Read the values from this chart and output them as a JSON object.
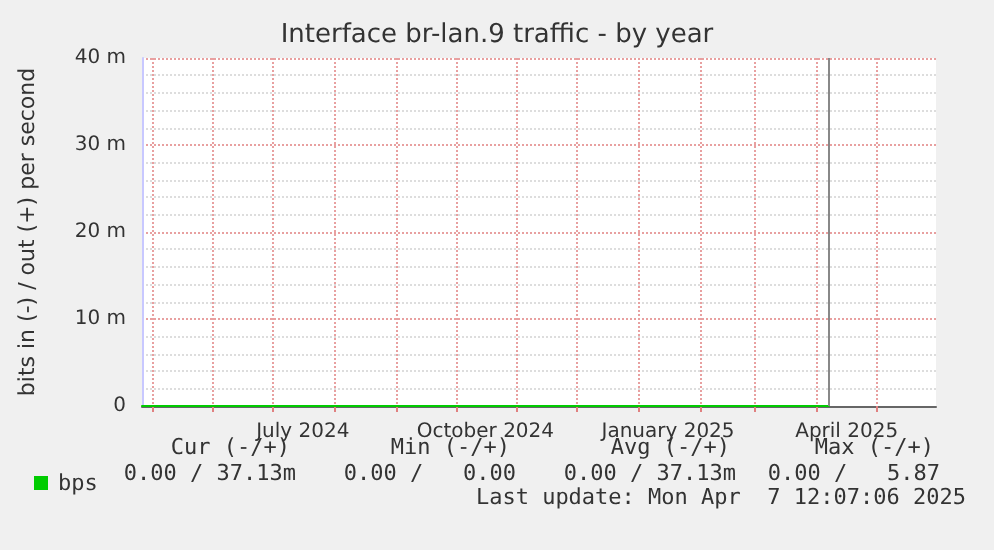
{
  "chart_data": {
    "type": "line",
    "title": "Interface br-lan.9 traffic - by year",
    "ylabel": "bits in (-) / out (+) per second",
    "xlim": [
      "2024-04-26",
      "2025-05-31"
    ],
    "xticks": [
      {
        "value": "2024-05-01",
        "label": null
      },
      {
        "value": "2024-06-01",
        "label": null
      },
      {
        "value": "2024-07-01",
        "label": null
      },
      {
        "value": "2024-07-16",
        "label": "July 2024"
      },
      {
        "value": "2024-08-01",
        "label": null
      },
      {
        "value": "2024-09-01",
        "label": null
      },
      {
        "value": "2024-10-01",
        "label": null
      },
      {
        "value": "2024-10-16",
        "label": "October 2024"
      },
      {
        "value": "2024-11-01",
        "label": null
      },
      {
        "value": "2024-12-01",
        "label": null
      },
      {
        "value": "2025-01-01",
        "label": null
      },
      {
        "value": "2025-01-16",
        "label": "January 2025"
      },
      {
        "value": "2025-02-01",
        "label": null
      },
      {
        "value": "2025-03-01",
        "label": null
      },
      {
        "value": "2025-04-01",
        "label": null
      },
      {
        "value": "2025-04-16",
        "label": "April 2025"
      },
      {
        "value": "2025-05-01",
        "label": null
      }
    ],
    "ylim": [
      0,
      40
    ],
    "yticks": [
      0,
      {
        "value": 10,
        "label": "10 m"
      },
      {
        "value": 20,
        "label": "20 m"
      },
      {
        "value": 30,
        "label": "30 m"
      },
      {
        "value": 40,
        "label": "40 m"
      }
    ],
    "grid": true,
    "legend": "bottom left",
    "marker": "none",
    "line_style": "solid",
    "series": [
      {
        "name": "bps",
        "color": "#00cc00",
        "x": [
          "2024-04-26",
          "2025-04-07"
        ],
        "values": [
          0,
          0
        ]
      }
    ],
    "ref_lines": [
      {
        "axis": "x",
        "value": "2025-04-07",
        "label": null,
        "color": "#888888"
      }
    ],
    "annotations": [
      "Cur (-/+)",
      "Min (-/+)",
      "Avg (-/+)",
      "Max (-/+)",
      "0.00 / 37.13m",
      "0.00 /   0.00",
      "0.00 / 37.13m",
      "0.00 /   5.87",
      "Last update: Mon Apr  7 12:07:06 2025"
    ]
  }
}
